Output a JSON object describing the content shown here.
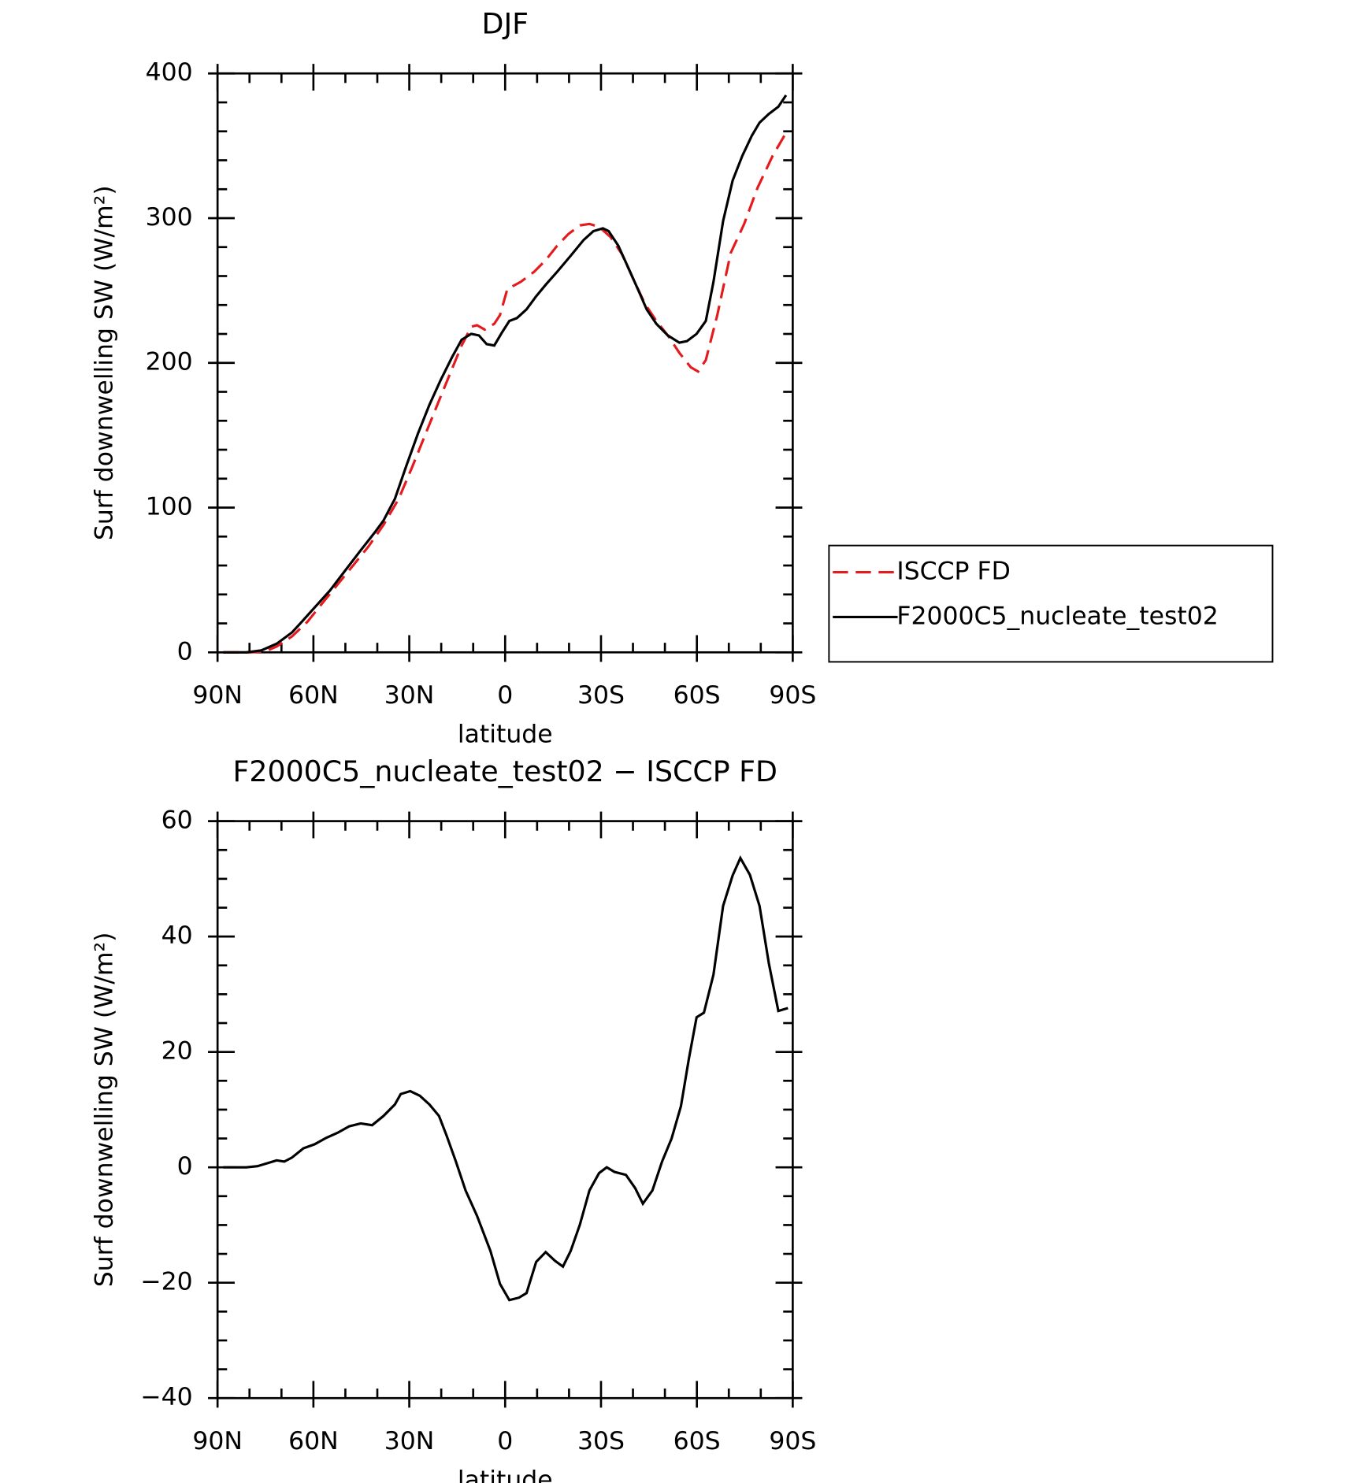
{
  "chart_data": [
    {
      "type": "line",
      "title": "DJF",
      "xlabel": "latitude",
      "ylabel": "Surf downwelling SW (W/m²)",
      "xlim": [
        90,
        -90
      ],
      "xticks": [
        {
          "value": 90,
          "label": "90N"
        },
        {
          "value": 60,
          "label": "60N"
        },
        {
          "value": 30,
          "label": "30N"
        },
        0,
        {
          "value": -30,
          "label": "30S"
        },
        {
          "value": -60,
          "label": "60S"
        },
        {
          "value": -90,
          "label": "90S"
        }
      ],
      "ylim": [
        0,
        400
      ],
      "yticks": [
        0,
        100,
        200,
        300,
        400
      ],
      "legend": "right",
      "series": [
        {
          "name": "ISCCP FD",
          "color": "#e41a1c",
          "dash": "dashed",
          "x": [
            88.2,
            80,
            75,
            71.5,
            66.7,
            61.9,
            57.2,
            52.4,
            47.6,
            42.8,
            38.1,
            33.3,
            29.1,
            24.9,
            20.7,
            16.6,
            13.6,
            10.6,
            8.8,
            6.4,
            3.4,
            1.6,
            -0.7,
            -4.9,
            -9.1,
            -12.7,
            -16.3,
            -19.8,
            -23.4,
            -26.4,
            -29.4,
            -33,
            -36.6,
            -40.1,
            -43.7,
            -47.3,
            -50.9,
            -54.5,
            -58.1,
            -60.4,
            -62.8,
            -66.4,
            -70.6,
            -74.8,
            -79,
            -83.7,
            -87.9
          ],
          "values": [
            0,
            0,
            0.7,
            4,
            11,
            21,
            34,
            47,
            60,
            73,
            88,
            106,
            128,
            151,
            174,
            196,
            212,
            225,
            226,
            223,
            227,
            233,
            251,
            256,
            263,
            271,
            281,
            289,
            295,
            296,
            294,
            287,
            275,
            258,
            241,
            229,
            219,
            207,
            197,
            194,
            202,
            233,
            276,
            296,
            321,
            343,
            359
          ]
        },
        {
          "name": "F2000C5_nucleate_test02",
          "color": "#000000",
          "dash": "solid",
          "x": [
            88.2,
            81,
            76.3,
            71.5,
            66.7,
            63.1,
            59.6,
            54.8,
            50,
            45.2,
            40.5,
            38.1,
            34.5,
            30.9,
            27.3,
            23.7,
            20.2,
            16.6,
            13.6,
            10.6,
            8.2,
            5.8,
            3.4,
            1,
            -1.3,
            -3.7,
            -6.7,
            -9.7,
            -12.7,
            -16.3,
            -20.5,
            -24.6,
            -27.6,
            -30.6,
            -32.4,
            -35.4,
            -38.9,
            -41.9,
            -44.3,
            -47.3,
            -50.9,
            -54.5,
            -56.9,
            -59.9,
            -62.8,
            -65.2,
            -68.2,
            -71.2,
            -74.2,
            -77.2,
            -79.6,
            -82.5,
            -85.5,
            -87.9
          ],
          "values": [
            0,
            0,
            1.3,
            5.9,
            13.8,
            22.4,
            31,
            42.8,
            56.7,
            70.5,
            83.7,
            91,
            106,
            129,
            151,
            171,
            188,
            204,
            216,
            220,
            219,
            213,
            212,
            221,
            229,
            231,
            237,
            246,
            254,
            263,
            274,
            285,
            291,
            293,
            291,
            281,
            264,
            249,
            237,
            227,
            219,
            214,
            215,
            220,
            229,
            256,
            298,
            326,
            343,
            357,
            366,
            372,
            377,
            385
          ]
        }
      ]
    },
    {
      "type": "line",
      "title": "F2000C5_nucleate_test02 − ISCCP FD",
      "xlabel": "latitude",
      "ylabel": "Surf downwelling SW (W/m²)",
      "xlim": [
        90,
        -90
      ],
      "xticks": [
        {
          "value": 90,
          "label": "90N"
        },
        {
          "value": 60,
          "label": "60N"
        },
        {
          "value": 30,
          "label": "30N"
        },
        0,
        {
          "value": -30,
          "label": "30S"
        },
        {
          "value": -60,
          "label": "60S"
        },
        {
          "value": -90,
          "label": "90S"
        }
      ],
      "ylim": [
        -40,
        60
      ],
      "yticks": [
        {
          "value": -40,
          "label": "−40"
        },
        {
          "value": -20,
          "label": "−20"
        },
        0,
        20,
        40,
        60
      ],
      "series": [
        {
          "color": "#000000",
          "dash": "solid",
          "x": [
            88.2,
            81,
            77.5,
            71.5,
            69.1,
            66.7,
            63.1,
            59.6,
            56,
            52.4,
            48.8,
            45.2,
            41.6,
            38.1,
            34.5,
            32.7,
            29.7,
            26.7,
            23.7,
            20.7,
            18.4,
            15.4,
            12.4,
            8.8,
            4.6,
            1.6,
            -1.3,
            -4.3,
            -6.7,
            -9.7,
            -12.7,
            -15.6,
            -18.1,
            -20.5,
            -23.4,
            -26.4,
            -29.4,
            -31.8,
            -34.2,
            -37.8,
            -40.7,
            -43.1,
            -46.1,
            -49.1,
            -52.1,
            -55,
            -57.5,
            -59.9,
            -62.2,
            -65.2,
            -68.2,
            -71.2,
            -73.6,
            -76.6,
            -79.6,
            -82.5,
            -85.5,
            -88.5
          ],
          "values": [
            0,
            0,
            0.2,
            1.2,
            1,
            1.7,
            3.3,
            4,
            5.1,
            6,
            7.1,
            7.6,
            7.3,
            8.9,
            10.9,
            12.7,
            13.2,
            12.4,
            10.9,
            8.9,
            5.6,
            1,
            -4,
            -8.4,
            -14.5,
            -20.2,
            -23,
            -22.6,
            -21.8,
            -16.4,
            -14.7,
            -16.2,
            -17.2,
            -14.5,
            -9.9,
            -4,
            -1,
            0,
            -0.8,
            -1.3,
            -3.6,
            -6.3,
            -4,
            1,
            5,
            10.6,
            18.8,
            26,
            26.8,
            33.4,
            45.3,
            50.6,
            53.6,
            50.7,
            45.3,
            35.4,
            27.1,
            27.6
          ]
        }
      ]
    }
  ]
}
